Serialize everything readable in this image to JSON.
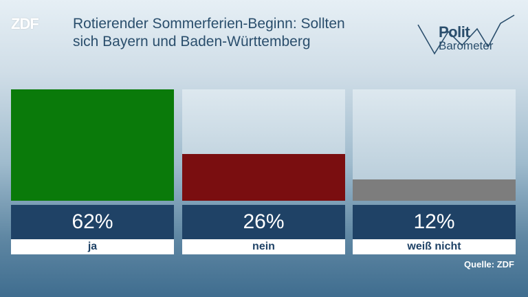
{
  "branding": {
    "zdf_logo": "ZDF",
    "barometer_line1": "Polit",
    "barometer_line2": "Barometer"
  },
  "colors": {
    "ja": "#0a7a0a",
    "nein": "#7a0e10",
    "weiss_nicht": "#7d7d7d"
  },
  "chart_data": {
    "type": "bar",
    "title_lines": [
      "Rotierender Sommerferien-Beginn: Sollten",
      "sich Bayern und Baden-Württemberg"
    ],
    "categories": [
      "ja",
      "nein",
      "weiß nicht"
    ],
    "values": [
      62,
      26,
      12
    ],
    "value_labels": [
      "62%",
      "26%",
      "12%"
    ],
    "unit": "%",
    "ylim": [
      0,
      62
    ],
    "grid": false,
    "legend": "none",
    "source": "Quelle: ZDF"
  }
}
